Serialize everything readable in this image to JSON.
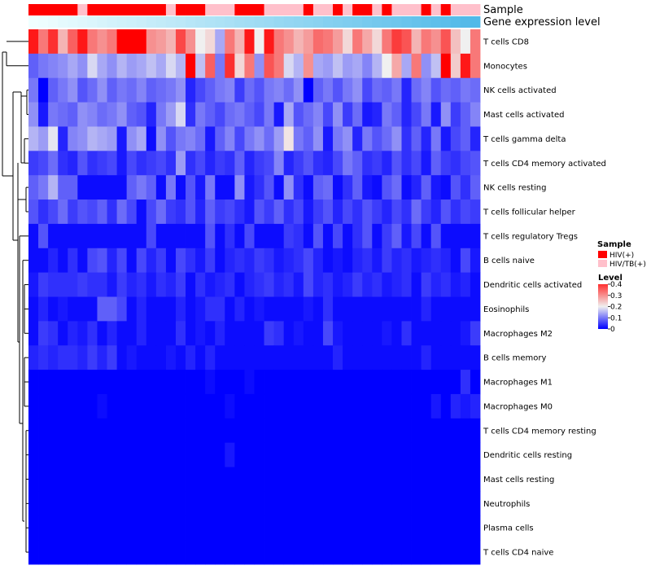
{
  "chart_data": {
    "type": "heatmap",
    "title": "",
    "n_samples": 46,
    "annotation_tracks": [
      {
        "name": "Sample",
        "label": "Sample",
        "values": [
          "HIV(+)",
          "HIV(+)",
          "HIV(+)",
          "HIV(+)",
          "HIV(+)",
          "HIV/TB(+)",
          "HIV(+)",
          "HIV(+)",
          "HIV(+)",
          "HIV(+)",
          "HIV(+)",
          "HIV(+)",
          "HIV(+)",
          "HIV(+)",
          "HIV/TB(+)",
          "HIV(+)",
          "HIV(+)",
          "HIV(+)",
          "HIV/TB(+)",
          "HIV/TB(+)",
          "HIV/TB(+)",
          "HIV(+)",
          "HIV(+)",
          "HIV(+)",
          "HIV/TB(+)",
          "HIV/TB(+)",
          "HIV/TB(+)",
          "HIV/TB(+)",
          "HIV(+)",
          "HIV/TB(+)",
          "HIV/TB(+)",
          "HIV(+)",
          "HIV/TB(+)",
          "HIV(+)",
          "HIV(+)",
          "HIV/TB(+)",
          "HIV(+)",
          "HIV/TB(+)",
          "HIV/TB(+)",
          "HIV/TB(+)",
          "HIV(+)",
          "HIV/TB(+)",
          "HIV(+)",
          "HIV/TB(+)",
          "HIV/TB(+)",
          "HIV/TB(+)"
        ]
      },
      {
        "name": "Gene expression level",
        "label": "Gene expression level",
        "values": [
          0.0,
          0.02,
          0.04,
          0.07,
          0.09,
          0.11,
          0.13,
          0.16,
          0.18,
          0.2,
          0.22,
          0.24,
          0.27,
          0.29,
          0.31,
          0.33,
          0.36,
          0.38,
          0.4,
          0.42,
          0.44,
          0.47,
          0.49,
          0.51,
          0.53,
          0.56,
          0.58,
          0.6,
          0.62,
          0.64,
          0.67,
          0.69,
          0.71,
          0.73,
          0.76,
          0.78,
          0.8,
          0.82,
          0.84,
          0.87,
          0.89,
          0.91,
          0.93,
          0.96,
          0.98,
          1.0
        ]
      }
    ],
    "rows": [
      "T cells CD8",
      "Monocytes",
      "NK cells activated",
      "Mast cells activated",
      "T cells gamma delta",
      "T cells CD4 memory activated",
      "NK cells resting",
      "T cells follicular helper",
      "T cells regulatory  Tregs",
      "B cells naive",
      "Dendritic cells activated",
      "Eosinophils",
      "Macrophages M2",
      "B cells memory",
      "Macrophages M1",
      "Macrophages M0",
      "T cells CD4 memory resting",
      "Dendritic cells resting",
      "Mast cells resting",
      "Neutrophils",
      "Plasma cells",
      "T cells CD4 naive"
    ],
    "values": [
      [
        0.38,
        0.3,
        0.36,
        0.25,
        0.32,
        0.38,
        0.3,
        0.28,
        0.3,
        0.4,
        0.41,
        0.4,
        0.28,
        0.27,
        0.25,
        0.34,
        0.28,
        0.2,
        0.22,
        0.14,
        0.3,
        0.25,
        0.38,
        0.2,
        0.38,
        0.3,
        0.28,
        0.25,
        0.27,
        0.31,
        0.3,
        0.27,
        0.22,
        0.3,
        0.26,
        0.22,
        0.3,
        0.35,
        0.33,
        0.25,
        0.3,
        0.28,
        0.33,
        0.24,
        0.2,
        0.3
      ],
      [
        0.08,
        0.1,
        0.11,
        0.12,
        0.14,
        0.12,
        0.18,
        0.14,
        0.12,
        0.15,
        0.13,
        0.14,
        0.16,
        0.14,
        0.18,
        0.15,
        0.4,
        0.16,
        0.32,
        0.1,
        0.36,
        0.22,
        0.3,
        0.12,
        0.33,
        0.3,
        0.18,
        0.15,
        0.28,
        0.14,
        0.13,
        0.16,
        0.13,
        0.14,
        0.11,
        0.15,
        0.2,
        0.26,
        0.14,
        0.3,
        0.12,
        0.16,
        0.4,
        0.23,
        0.38,
        0.3
      ],
      [
        0.1,
        0.0,
        0.08,
        0.1,
        0.12,
        0.07,
        0.09,
        0.12,
        0.08,
        0.1,
        0.09,
        0.11,
        0.08,
        0.09,
        0.1,
        0.12,
        0.03,
        0.06,
        0.08,
        0.1,
        0.11,
        0.05,
        0.09,
        0.07,
        0.1,
        0.11,
        0.09,
        0.12,
        0.0,
        0.08,
        0.1,
        0.07,
        0.1,
        0.12,
        0.06,
        0.09,
        0.08,
        0.1,
        0.03,
        0.09,
        0.11,
        0.07,
        0.09,
        0.08,
        0.1,
        0.09
      ],
      [
        0.12,
        0.02,
        0.1,
        0.09,
        0.08,
        0.12,
        0.11,
        0.09,
        0.1,
        0.12,
        0.08,
        0.07,
        0.03,
        0.1,
        0.13,
        0.18,
        0.04,
        0.1,
        0.08,
        0.06,
        0.09,
        0.1,
        0.08,
        0.06,
        0.1,
        0.02,
        0.14,
        0.07,
        0.09,
        0.11,
        0.06,
        0.12,
        0.05,
        0.09,
        0.02,
        0.03,
        0.1,
        0.08,
        0.03,
        0.06,
        0.1,
        0.02,
        0.12,
        0.05,
        0.08,
        0.11
      ],
      [
        0.15,
        0.13,
        0.19,
        0.03,
        0.11,
        0.12,
        0.15,
        0.14,
        0.13,
        0.02,
        0.12,
        0.14,
        0.01,
        0.12,
        0.07,
        0.1,
        0.11,
        0.09,
        0.02,
        0.08,
        0.11,
        0.06,
        0.1,
        0.12,
        0.09,
        0.13,
        0.21,
        0.1,
        0.08,
        0.12,
        0.02,
        0.1,
        0.12,
        0.03,
        0.1,
        0.07,
        0.09,
        0.12,
        0.04,
        0.08,
        0.03,
        0.1,
        0.02,
        0.06,
        0.08,
        0.03
      ],
      [
        0.05,
        0.06,
        0.09,
        0.04,
        0.03,
        0.07,
        0.04,
        0.05,
        0.06,
        0.02,
        0.06,
        0.04,
        0.05,
        0.06,
        0.04,
        0.13,
        0.04,
        0.06,
        0.03,
        0.05,
        0.04,
        0.08,
        0.03,
        0.05,
        0.06,
        0.11,
        0.03,
        0.05,
        0.07,
        0.04,
        0.03,
        0.06,
        0.1,
        0.08,
        0.04,
        0.05,
        0.03,
        0.07,
        0.04,
        0.06,
        0.02,
        0.08,
        0.05,
        0.04,
        0.06,
        0.07
      ],
      [
        0.08,
        0.1,
        0.15,
        0.08,
        0.08,
        0.01,
        0.01,
        0.01,
        0.01,
        0.01,
        0.08,
        0.1,
        0.08,
        0.01,
        0.1,
        0.01,
        0.07,
        0.02,
        0.1,
        0.01,
        0.01,
        0.12,
        0.02,
        0.04,
        0.07,
        0.01,
        0.12,
        0.04,
        0.01,
        0.08,
        0.09,
        0.01,
        0.04,
        0.08,
        0.02,
        0.01,
        0.07,
        0.09,
        0.01,
        0.03,
        0.08,
        0.02,
        0.01,
        0.07,
        0.04,
        0.08
      ],
      [
        0.07,
        0.04,
        0.06,
        0.09,
        0.05,
        0.07,
        0.06,
        0.08,
        0.04,
        0.09,
        0.06,
        0.01,
        0.06,
        0.09,
        0.05,
        0.04,
        0.07,
        0.03,
        0.08,
        0.05,
        0.06,
        0.04,
        0.02,
        0.07,
        0.05,
        0.08,
        0.04,
        0.06,
        0.02,
        0.05,
        0.07,
        0.03,
        0.06,
        0.04,
        0.07,
        0.05,
        0.03,
        0.06,
        0.04,
        0.09,
        0.05,
        0.03,
        0.07,
        0.04,
        0.06,
        0.05
      ],
      [
        0.01,
        0.07,
        0.01,
        0.01,
        0.01,
        0.01,
        0.01,
        0.01,
        0.01,
        0.01,
        0.01,
        0.01,
        0.06,
        0.01,
        0.01,
        0.01,
        0.01,
        0.01,
        0.07,
        0.01,
        0.04,
        0.01,
        0.06,
        0.01,
        0.01,
        0.01,
        0.05,
        0.04,
        0.01,
        0.07,
        0.01,
        0.06,
        0.01,
        0.04,
        0.07,
        0.01,
        0.05,
        0.08,
        0.02,
        0.06,
        0.01,
        0.07,
        0.01,
        0.01,
        0.01,
        0.01
      ],
      [
        0.01,
        0.01,
        0.03,
        0.01,
        0.04,
        0.01,
        0.06,
        0.07,
        0.03,
        0.06,
        0.01,
        0.06,
        0.03,
        0.05,
        0.01,
        0.06,
        0.04,
        0.02,
        0.05,
        0.01,
        0.03,
        0.04,
        0.03,
        0.05,
        0.04,
        0.02,
        0.03,
        0.04,
        0.06,
        0.03,
        0.01,
        0.02,
        0.01,
        0.03,
        0.04,
        0.02,
        0.05,
        0.03,
        0.04,
        0.02,
        0.03,
        0.04,
        0.03,
        0.01,
        0.06,
        0.02
      ],
      [
        0.02,
        0.05,
        0.04,
        0.04,
        0.04,
        0.05,
        0.04,
        0.04,
        0.02,
        0.05,
        0.03,
        0.04,
        0.02,
        0.04,
        0.03,
        0.05,
        0.01,
        0.04,
        0.02,
        0.03,
        0.04,
        0.01,
        0.03,
        0.04,
        0.05,
        0.03,
        0.04,
        0.02,
        0.06,
        0.03,
        0.04,
        0.02,
        0.03,
        0.05,
        0.03,
        0.04,
        0.02,
        0.03,
        0.04,
        0.01,
        0.05,
        0.03,
        0.04,
        0.02,
        0.03,
        0.01
      ],
      [
        0.01,
        0.03,
        0.01,
        0.02,
        0.01,
        0.01,
        0.01,
        0.08,
        0.08,
        0.06,
        0.01,
        0.03,
        0.01,
        0.01,
        0.01,
        0.03,
        0.01,
        0.02,
        0.04,
        0.04,
        0.01,
        0.03,
        0.01,
        0.02,
        0.01,
        0.01,
        0.01,
        0.01,
        0.02,
        0.01,
        0.04,
        0.01,
        0.01,
        0.01,
        0.01,
        0.01,
        0.01,
        0.01,
        0.01,
        0.01,
        0.03,
        0.01,
        0.01,
        0.01,
        0.01,
        0.01
      ],
      [
        0.01,
        0.05,
        0.04,
        0.01,
        0.03,
        0.02,
        0.04,
        0.01,
        0.03,
        0.01,
        0.01,
        0.03,
        0.01,
        0.01,
        0.01,
        0.04,
        0.01,
        0.02,
        0.01,
        0.03,
        0.01,
        0.01,
        0.01,
        0.01,
        0.05,
        0.04,
        0.01,
        0.02,
        0.01,
        0.01,
        0.06,
        0.02,
        0.01,
        0.01,
        0.01,
        0.01,
        0.02,
        0.01,
        0.04,
        0.01,
        0.01,
        0.01,
        0.01,
        0.01,
        0.02,
        0.05
      ],
      [
        0.03,
        0.04,
        0.03,
        0.04,
        0.04,
        0.03,
        0.05,
        0.03,
        0.05,
        0.01,
        0.02,
        0.01,
        0.01,
        0.01,
        0.02,
        0.01,
        0.03,
        0.01,
        0.03,
        0.01,
        0.01,
        0.01,
        0.01,
        0.01,
        0.01,
        0.01,
        0.01,
        0.01,
        0.01,
        0.01,
        0.01,
        0.03,
        0.01,
        0.01,
        0.01,
        0.01,
        0.01,
        0.01,
        0.01,
        0.01,
        0.03,
        0.01,
        0.01,
        0.01,
        0.01,
        0.01
      ],
      [
        0.0,
        0.0,
        0.0,
        0.0,
        0.0,
        0.0,
        0.0,
        0.0,
        0.0,
        0.0,
        0.0,
        0.0,
        0.0,
        0.0,
        0.0,
        0.0,
        0.0,
        0.0,
        0.01,
        0.0,
        0.0,
        0.0,
        0.01,
        0.0,
        0.0,
        0.0,
        0.0,
        0.0,
        0.0,
        0.0,
        0.0,
        0.0,
        0.0,
        0.0,
        0.0,
        0.0,
        0.0,
        0.0,
        0.0,
        0.0,
        0.0,
        0.0,
        0.0,
        0.0,
        0.04,
        0.0
      ],
      [
        0.0,
        0.0,
        0.0,
        0.0,
        0.0,
        0.0,
        0.0,
        0.01,
        0.0,
        0.0,
        0.0,
        0.0,
        0.0,
        0.0,
        0.0,
        0.0,
        0.0,
        0.0,
        0.0,
        0.0,
        0.01,
        0.0,
        0.0,
        0.0,
        0.0,
        0.0,
        0.0,
        0.0,
        0.0,
        0.0,
        0.0,
        0.0,
        0.0,
        0.0,
        0.0,
        0.0,
        0.0,
        0.0,
        0.0,
        0.0,
        0.0,
        0.02,
        0.0,
        0.03,
        0.02,
        0.03
      ],
      [
        0.0,
        0.0,
        0.0,
        0.0,
        0.0,
        0.0,
        0.0,
        0.0,
        0.0,
        0.0,
        0.0,
        0.0,
        0.0,
        0.0,
        0.0,
        0.0,
        0.0,
        0.0,
        0.0,
        0.0,
        0.0,
        0.0,
        0.0,
        0.0,
        0.0,
        0.0,
        0.0,
        0.0,
        0.0,
        0.0,
        0.0,
        0.0,
        0.0,
        0.0,
        0.0,
        0.0,
        0.0,
        0.0,
        0.0,
        0.0,
        0.0,
        0.0,
        0.0,
        0.0,
        0.0,
        0.0
      ],
      [
        0.0,
        0.0,
        0.0,
        0.0,
        0.0,
        0.0,
        0.0,
        0.0,
        0.0,
        0.0,
        0.0,
        0.0,
        0.0,
        0.0,
        0.0,
        0.0,
        0.0,
        0.0,
        0.0,
        0.0,
        0.02,
        0.0,
        0.0,
        0.0,
        0.0,
        0.0,
        0.0,
        0.0,
        0.0,
        0.0,
        0.0,
        0.0,
        0.0,
        0.0,
        0.0,
        0.0,
        0.0,
        0.0,
        0.0,
        0.0,
        0.0,
        0.0,
        0.0,
        0.0,
        0.0,
        0.0
      ],
      [
        0.0,
        0.0,
        0.0,
        0.0,
        0.0,
        0.0,
        0.0,
        0.0,
        0.0,
        0.0,
        0.0,
        0.0,
        0.0,
        0.0,
        0.0,
        0.0,
        0.0,
        0.0,
        0.0,
        0.0,
        0.0,
        0.0,
        0.0,
        0.0,
        0.0,
        0.0,
        0.0,
        0.0,
        0.0,
        0.0,
        0.0,
        0.0,
        0.0,
        0.0,
        0.0,
        0.0,
        0.0,
        0.0,
        0.0,
        0.0,
        0.0,
        0.0,
        0.0,
        0.0,
        0.0,
        0.0
      ],
      [
        0.0,
        0.0,
        0.0,
        0.0,
        0.0,
        0.0,
        0.0,
        0.0,
        0.0,
        0.0,
        0.0,
        0.0,
        0.0,
        0.0,
        0.0,
        0.0,
        0.0,
        0.0,
        0.0,
        0.0,
        0.0,
        0.0,
        0.0,
        0.0,
        0.0,
        0.0,
        0.0,
        0.0,
        0.0,
        0.0,
        0.0,
        0.0,
        0.0,
        0.0,
        0.0,
        0.0,
        0.0,
        0.0,
        0.0,
        0.0,
        0.0,
        0.0,
        0.0,
        0.0,
        0.0,
        0.0
      ],
      [
        0.0,
        0.0,
        0.0,
        0.0,
        0.0,
        0.0,
        0.0,
        0.0,
        0.0,
        0.0,
        0.0,
        0.0,
        0.0,
        0.0,
        0.0,
        0.0,
        0.0,
        0.0,
        0.0,
        0.0,
        0.0,
        0.0,
        0.0,
        0.0,
        0.0,
        0.0,
        0.0,
        0.0,
        0.0,
        0.0,
        0.0,
        0.0,
        0.0,
        0.0,
        0.0,
        0.0,
        0.0,
        0.0,
        0.0,
        0.0,
        0.0,
        0.0,
        0.0,
        0.0,
        0.0,
        0.0
      ],
      [
        0.0,
        0.0,
        0.0,
        0.0,
        0.0,
        0.0,
        0.0,
        0.0,
        0.0,
        0.0,
        0.0,
        0.0,
        0.0,
        0.0,
        0.0,
        0.0,
        0.0,
        0.0,
        0.0,
        0.0,
        0.0,
        0.0,
        0.0,
        0.0,
        0.0,
        0.0,
        0.0,
        0.0,
        0.0,
        0.0,
        0.0,
        0.0,
        0.0,
        0.0,
        0.0,
        0.0,
        0.0,
        0.0,
        0.0,
        0.0,
        0.0,
        0.0,
        0.0,
        0.0,
        0.0,
        0.0
      ]
    ],
    "row_dendrogram": [
      [
        0,
        1
      ],
      [
        2,
        3
      ],
      [
        4,
        5
      ],
      [
        6,
        7
      ],
      [
        8,
        9
      ],
      [
        10,
        11
      ],
      [
        12,
        13
      ],
      [
        14,
        15
      ],
      [
        16,
        17
      ],
      [
        18,
        19
      ],
      [
        20,
        21
      ]
    ],
    "legend": {
      "sample": {
        "title": "Sample",
        "entries": [
          {
            "label": "HIV(+)",
            "color": "#ff0000"
          },
          {
            "label": "HIV/TB(+)",
            "color": "#ffc0cb"
          }
        ]
      },
      "level": {
        "title": "Level",
        "ticks": [
          "0.4",
          "0.3",
          "0.2",
          "0.1",
          "0"
        ],
        "range": [
          0,
          0.4
        ]
      },
      "placement": "right"
    },
    "colors": {
      "low": "#0000ff",
      "mid": "#f0f0f0",
      "high": "#ff0000",
      "sample_hiv": "#ff0000",
      "sample_hivtb": "#ffc0cb",
      "level_low": "#f0ffff",
      "level_high": "#51b9e8"
    }
  }
}
